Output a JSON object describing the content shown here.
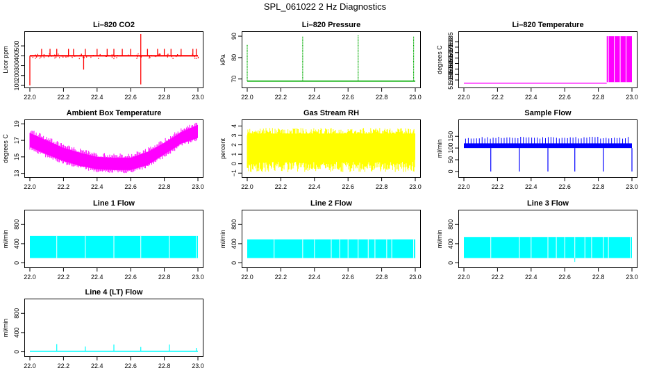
{
  "figure_title": "SPL_061022  2 Hz Diagnostics",
  "chart_data": [
    {
      "id": "co2",
      "type": "line",
      "title": "Li–820 CO2",
      "ylabel": "Licor ppm",
      "color": "#ff0000",
      "xlim": [
        22.0,
        23.0
      ],
      "ylim": [
        100,
        620
      ],
      "xticks": [
        "22.0",
        "22.2",
        "22.4",
        "22.6",
        "22.8",
        "23.0"
      ],
      "yticks": [
        100,
        200,
        300,
        400,
        500
      ],
      "ytick_labels": [
        "100",
        "200",
        "300",
        "400",
        "500"
      ],
      "baseline": [
        [
          22.0,
          400
        ],
        [
          23.0,
          400
        ]
      ],
      "spikes": [
        [
          22.0,
          100
        ],
        [
          22.07,
          470
        ],
        [
          22.12,
          470
        ],
        [
          22.16,
          470
        ],
        [
          22.23,
          470
        ],
        [
          22.26,
          470
        ],
        [
          22.32,
          260
        ],
        [
          22.33,
          470
        ],
        [
          22.4,
          470
        ],
        [
          22.46,
          470
        ],
        [
          22.5,
          470
        ],
        [
          22.55,
          470
        ],
        [
          22.6,
          470
        ],
        [
          22.66,
          620
        ],
        [
          22.66,
          110
        ],
        [
          22.7,
          470
        ],
        [
          22.76,
          470
        ],
        [
          22.8,
          470
        ],
        [
          22.84,
          470
        ],
        [
          22.9,
          470
        ],
        [
          22.97,
          470
        ],
        [
          22.99,
          470
        ]
      ]
    },
    {
      "id": "pressure",
      "type": "line",
      "title": "Li–820 Pressure",
      "ylabel": "kPa",
      "color": "#00aa00",
      "xlim": [
        22.0,
        23.0
      ],
      "ylim": [
        67,
        91
      ],
      "xticks": [
        "22.0",
        "22.2",
        "22.4",
        "22.6",
        "22.8",
        "23.0"
      ],
      "yticks": [
        70,
        80,
        90
      ],
      "ytick_labels": [
        "70",
        "80",
        "90"
      ],
      "baseline": [
        [
          22.0,
          69
        ],
        [
          23.0,
          69
        ]
      ],
      "spikes": [
        [
          22.0,
          86
        ],
        [
          22.33,
          90
        ],
        [
          22.66,
          90.5
        ],
        [
          22.99,
          90
        ]
      ]
    },
    {
      "id": "licor_temp",
      "type": "line",
      "title": "Li–820 Temperature",
      "ylabel": "degrees C",
      "color": "#ff00ff",
      "xlim": [
        22.0,
        23.0
      ],
      "ylim": [
        51.945,
        51.992
      ],
      "xticks": [
        "22.0",
        "22.2",
        "22.4",
        "22.6",
        "22.8",
        "23.0"
      ],
      "yticks": [
        51.95,
        51.955,
        51.96,
        51.965,
        51.97,
        51.975,
        51.98,
        51.985
      ],
      "ytick_labels": [
        "51.950",
        "51.955",
        "51.960",
        "51.965",
        "51.970",
        "51.975",
        "51.980",
        "51.985"
      ],
      "segments": [
        {
          "x": [
            22.0,
            22.85
          ],
          "y": 51.947
        },
        {
          "x": [
            22.85,
            23.0
          ],
          "y_low": 51.948,
          "y_high": 51.99
        }
      ]
    },
    {
      "id": "box_temp",
      "type": "area",
      "title": "Ambient Box Temperature",
      "ylabel": "degrees C",
      "color": "#ff00ff",
      "xlim": [
        22.0,
        23.0
      ],
      "ylim": [
        12.8,
        19.2
      ],
      "xticks": [
        "22.0",
        "22.2",
        "22.4",
        "22.6",
        "22.8",
        "23.0"
      ],
      "yticks": [
        13,
        15,
        17,
        19
      ],
      "ytick_labels": [
        "13",
        "15",
        "17",
        "19"
      ],
      "envelope": [
        [
          22.0,
          16.2,
          17.9
        ],
        [
          22.1,
          15.3,
          17.0
        ],
        [
          22.2,
          14.5,
          16.1
        ],
        [
          22.3,
          13.9,
          15.5
        ],
        [
          22.4,
          13.5,
          15.0
        ],
        [
          22.5,
          13.4,
          14.9
        ],
        [
          22.6,
          13.4,
          14.9
        ],
        [
          22.7,
          14.0,
          15.6
        ],
        [
          22.8,
          15.3,
          16.7
        ],
        [
          22.9,
          16.6,
          18.0
        ],
        [
          23.0,
          17.3,
          18.9
        ]
      ]
    },
    {
      "id": "rh",
      "type": "area",
      "title": "Gas Stream RH",
      "ylabel": "percent",
      "color": "#ffff00",
      "xlim": [
        22.0,
        23.0
      ],
      "ylim": [
        -1.2,
        4.4
      ],
      "xticks": [
        "22.0",
        "22.2",
        "22.4",
        "22.6",
        "22.8",
        "23.0"
      ],
      "yticks": [
        -1,
        0,
        1,
        2,
        3,
        4
      ],
      "ytick_labels": [
        "−1",
        "0",
        "1",
        "2",
        "3",
        "4"
      ],
      "band": [
        -0.9,
        3.8
      ]
    },
    {
      "id": "sample_flow",
      "type": "line",
      "title": "Sample Flow",
      "ylabel": "ml/min",
      "color": "#0000ff",
      "xlim": [
        22.0,
        23.0
      ],
      "ylim": [
        -15,
        210
      ],
      "xticks": [
        "22.0",
        "22.2",
        "22.4",
        "22.6",
        "22.8",
        "23.0"
      ],
      "yticks": [
        0,
        50,
        100,
        150
      ],
      "ytick_labels": [
        "0",
        "50",
        "100",
        "150"
      ],
      "band": [
        100,
        120
      ],
      "dips": [
        [
          22.16,
          0
        ],
        [
          22.33,
          0
        ],
        [
          22.5,
          0
        ],
        [
          22.66,
          0
        ],
        [
          22.83,
          0
        ],
        [
          23.0,
          0
        ]
      ]
    },
    {
      "id": "line1",
      "type": "area",
      "title": "Line 1 Flow",
      "ylabel": "ml/min",
      "color": "#00ffff",
      "xlim": [
        22.0,
        23.0
      ],
      "ylim": [
        -50,
        1050
      ],
      "xticks": [
        "22.0",
        "22.2",
        "22.4",
        "22.6",
        "22.8",
        "23.0"
      ],
      "yticks": [
        0,
        400,
        800
      ],
      "ytick_labels": [
        "0",
        "400",
        "800"
      ],
      "band": [
        100,
        560
      ],
      "gaps": [
        22.16,
        22.33,
        22.5,
        22.66,
        22.83,
        22.99
      ]
    },
    {
      "id": "line2",
      "type": "area",
      "title": "Line 2 Flow",
      "ylabel": "ml/min",
      "color": "#00ffff",
      "xlim": [
        22.0,
        23.0
      ],
      "ylim": [
        -50,
        1050
      ],
      "xticks": [
        "22.0",
        "22.2",
        "22.4",
        "22.6",
        "22.8",
        "23.0"
      ],
      "yticks": [
        0,
        400,
        800
      ],
      "ytick_labels": [
        "0",
        "400",
        "800"
      ],
      "band": [
        100,
        490
      ],
      "gaps": [
        22.16,
        22.33,
        22.4,
        22.5,
        22.55,
        22.6,
        22.66,
        22.72,
        22.76,
        22.83,
        22.86,
        22.99
      ]
    },
    {
      "id": "line3",
      "type": "area",
      "title": "Line 3 Flow",
      "ylabel": "ml/min",
      "color": "#00ffff",
      "xlim": [
        22.0,
        23.0
      ],
      "ylim": [
        -50,
        1050
      ],
      "xticks": [
        "22.0",
        "22.2",
        "22.4",
        "22.6",
        "22.8",
        "23.0"
      ],
      "yticks": [
        0,
        400,
        800
      ],
      "ytick_labels": [
        "0",
        "400",
        "800"
      ],
      "band": [
        100,
        540
      ],
      "gaps": [
        22.16,
        22.33,
        22.4,
        22.5,
        22.55,
        22.6,
        22.66,
        22.72,
        22.76,
        22.83,
        22.86,
        22.99
      ]
    },
    {
      "id": "line4",
      "type": "line",
      "title": "Line 4 (LT) Flow",
      "ylabel": "ml/min",
      "color": "#00ffff",
      "xlim": [
        22.0,
        23.0
      ],
      "ylim": [
        -50,
        1050
      ],
      "xticks": [
        "22.0",
        "22.2",
        "22.4",
        "22.6",
        "22.8",
        "23.0"
      ],
      "yticks": [
        0,
        400,
        800
      ],
      "ytick_labels": [
        "0",
        "400",
        "800"
      ],
      "baseline_value": 10,
      "spikes": [
        [
          22.16,
          160
        ],
        [
          22.33,
          110
        ],
        [
          22.5,
          150
        ],
        [
          22.66,
          100
        ],
        [
          22.83,
          150
        ],
        [
          22.99,
          80
        ]
      ]
    }
  ]
}
